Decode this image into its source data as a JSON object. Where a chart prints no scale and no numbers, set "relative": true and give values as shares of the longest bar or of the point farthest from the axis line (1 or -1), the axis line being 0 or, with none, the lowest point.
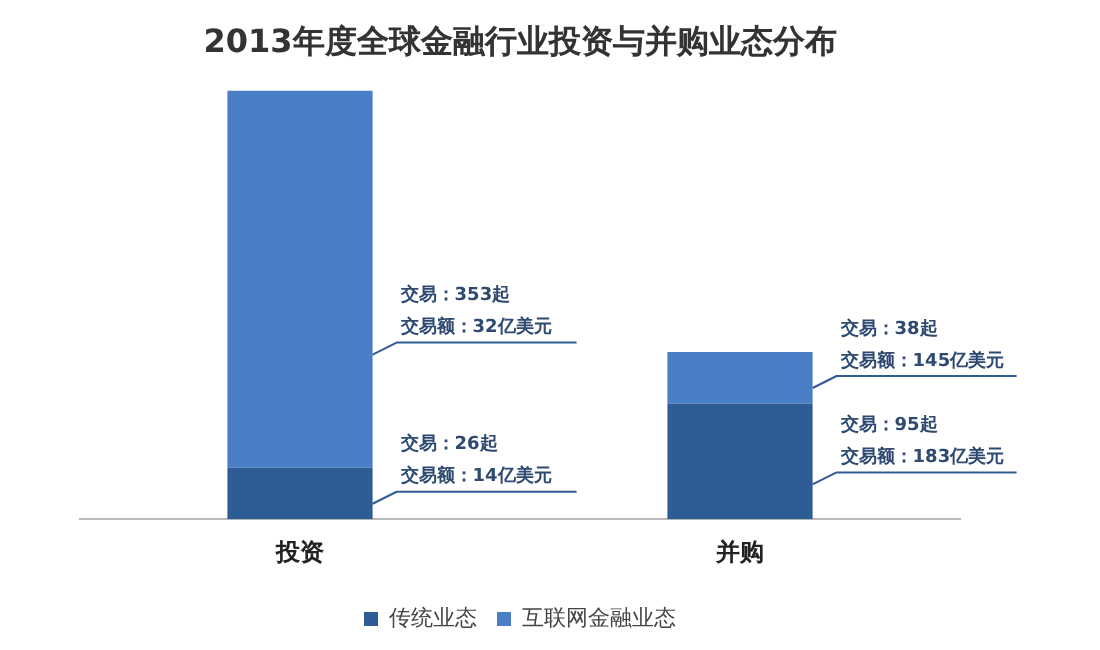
{
  "chart_data": {
    "type": "bar",
    "title": "2013年度全球金融行业投资与并购业态分布",
    "categories": [
      "投资",
      "并购"
    ],
    "stacked": true,
    "relative": true,
    "legend": "bottom",
    "grid": false,
    "series": [
      {
        "name": "传统业态",
        "color": "#2e5d95",
        "values": [
          0.12,
          0.27
        ]
      },
      {
        "name": "互联网金融业态",
        "color": "#4a7fc8",
        "values": [
          0.88,
          0.12
        ]
      }
    ],
    "annotations": [
      "交易：353起",
      "交易额：32亿美元",
      "交易：26起",
      "交易额：14亿美元",
      "交易：38起",
      "交易额：145亿美元",
      "交易：95起",
      "交易额：183亿美元"
    ]
  }
}
